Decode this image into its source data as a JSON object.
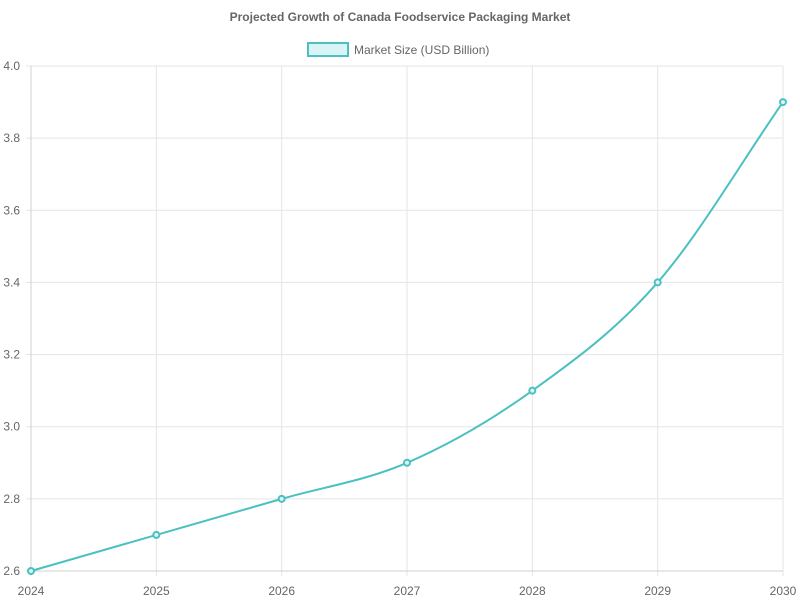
{
  "chart_data": {
    "type": "line",
    "title": "Projected Growth of Canada Foodservice Packaging Market",
    "xlabel": "",
    "ylabel": "",
    "categories": [
      "2024",
      "2025",
      "2026",
      "2027",
      "2028",
      "2029",
      "2030"
    ],
    "series": [
      {
        "name": "Market Size (USD Billion)",
        "values": [
          2.6,
          2.7,
          2.8,
          2.9,
          3.1,
          3.4,
          3.9
        ],
        "color": "#4bc0c0",
        "fill": "#d9f4f4"
      }
    ],
    "ylim": [
      2.6,
      4.0
    ],
    "yticks": [
      "2.6",
      "2.8",
      "3.0",
      "3.2",
      "3.4",
      "3.6",
      "3.8",
      "4.0"
    ],
    "grid": true,
    "legend_position": "top"
  }
}
